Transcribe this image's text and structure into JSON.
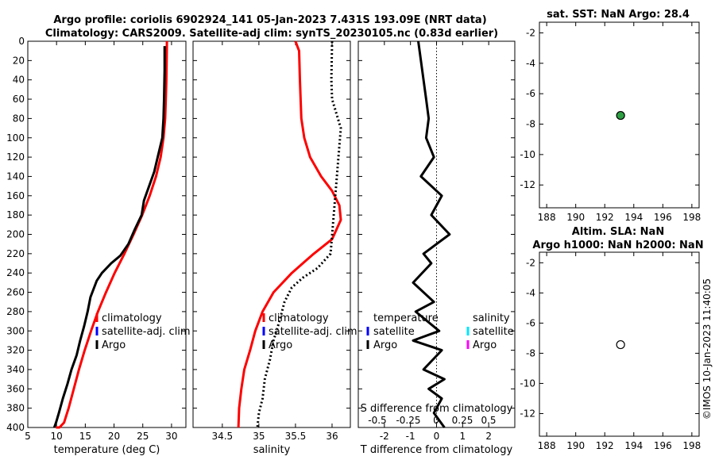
{
  "header": {
    "title_line1": "Argo profile: coriolis 6902924_141 05-Jan-2023 7.431S 193.09E (NRT data)",
    "title_line2": "Climatology: CARS2009. Satellite-adj clim: synTS_20230105.nc (0.83d earlier)"
  },
  "watermark": "©IMOS 10-Jan-2023 11:40:05",
  "colors": {
    "climatology": "#ff0000",
    "satellite_adj": "#0000ff",
    "argo": "#000000",
    "salinity_satellite": "#00e5ff",
    "salinity_argo": "#ff00ff",
    "argo_marker": "#2ea043"
  },
  "legend": {
    "climatology": "climatology",
    "satellite_adj": "satellite-adj. clim",
    "argo": "Argo",
    "diff_temperature": "temperature",
    "diff_salinity": "salinity",
    "diff_satellite": "satellite",
    "diff_argo": "Argo"
  },
  "chart_data": [
    {
      "id": "temperature_profile",
      "type": "line",
      "xlabel": "temperature (deg C)",
      "ylabel": "",
      "xlim": [
        5,
        32.5
      ],
      "ylim": [
        400,
        0
      ],
      "xticks": [
        5,
        10,
        15,
        20,
        25,
        30
      ],
      "yticks": [
        0,
        20,
        40,
        60,
        80,
        100,
        120,
        140,
        160,
        180,
        200,
        220,
        240,
        260,
        280,
        300,
        320,
        340,
        360,
        380,
        400
      ],
      "series": [
        {
          "name": "climatology",
          "x": [
            29.2,
            29.1,
            29.0,
            28.9,
            28.6,
            28.1,
            27.3,
            26.2,
            24.9,
            23.4,
            21.8,
            20.1,
            18.6,
            17.2,
            16.0,
            14.9,
            13.9,
            13.0,
            12.1,
            11.3,
            10.5,
            9.9
          ],
          "depth": [
            0,
            40,
            60,
            80,
            100,
            120,
            140,
            160,
            180,
            200,
            220,
            240,
            260,
            280,
            300,
            320,
            340,
            360,
            380,
            395,
            400,
            400
          ]
        },
        {
          "name": "Argo",
          "x": [
            28.8,
            28.8,
            28.7,
            28.6,
            28.4,
            27.6,
            27.0,
            26.1,
            25.2,
            24.8,
            23.6,
            22.5,
            21.1,
            19.5,
            17.9,
            17.0,
            15.9,
            15.4,
            14.8,
            14.1,
            13.5,
            12.6,
            11.9,
            11.1,
            10.4,
            9.9,
            9.6
          ],
          "depth": [
            5,
            30,
            60,
            80,
            100,
            120,
            135,
            150,
            165,
            180,
            195,
            210,
            222,
            230,
            240,
            248,
            265,
            280,
            295,
            310,
            325,
            340,
            355,
            370,
            385,
            395,
            400
          ]
        }
      ]
    },
    {
      "id": "salinity_profile",
      "type": "line",
      "xlabel": "salinity",
      "xlim": [
        34.1,
        36.25
      ],
      "ylim": [
        400,
        0
      ],
      "xticks": [
        34.5,
        35,
        35.5,
        36
      ],
      "series": [
        {
          "name": "climatology",
          "x": [
            35.5,
            35.55,
            35.56,
            35.58,
            35.62,
            35.7,
            35.85,
            36.0,
            36.1,
            36.12,
            36.0,
            35.75,
            35.45,
            35.2,
            35.05,
            34.95,
            34.88,
            34.8,
            34.76,
            34.73,
            34.72
          ],
          "depth": [
            0,
            10,
            40,
            80,
            100,
            120,
            140,
            155,
            170,
            185,
            205,
            220,
            240,
            260,
            280,
            300,
            320,
            340,
            360,
            380,
            400
          ]
        },
        {
          "name": "Argo",
          "x": [
            36.0,
            35.99,
            36.0,
            36.08,
            36.12,
            35.98,
            35.8,
            35.6,
            35.45,
            35.35,
            35.28,
            35.2,
            35.15,
            35.08,
            35.05,
            35.0,
            34.98
          ],
          "depth": [
            0,
            40,
            60,
            80,
            90,
            220,
            235,
            245,
            255,
            270,
            290,
            310,
            330,
            350,
            370,
            385,
            400
          ]
        }
      ]
    },
    {
      "id": "difference_profile",
      "type": "line",
      "xlabel": "T difference from climatology",
      "xlabel_top": "S difference from climatology",
      "xlim": [
        -3,
        3
      ],
      "ylim": [
        400,
        0
      ],
      "xticks": [
        -2,
        -1,
        0,
        1,
        2
      ],
      "top_xticks": [
        "-0.5",
        "-0.25",
        "0",
        "0.25",
        "0.5"
      ],
      "series": [
        {
          "name": "Argo",
          "x": [
            -0.7,
            -0.6,
            -0.5,
            -0.4,
            -0.3,
            -0.4,
            -0.1,
            -0.6,
            0.2,
            -0.2,
            0.5,
            0.0,
            -0.5,
            -0.2,
            -0.9,
            -0.1,
            -0.8,
            0.1,
            -0.9,
            0.2,
            -0.5,
            0.3,
            -0.3,
            0.2,
            -0.1,
            0.3
          ],
          "depth": [
            0,
            20,
            40,
            60,
            80,
            100,
            120,
            140,
            160,
            180,
            200,
            210,
            220,
            230,
            250,
            270,
            280,
            300,
            310,
            320,
            340,
            350,
            360,
            370,
            385,
            400
          ]
        }
      ]
    },
    {
      "id": "sst_map",
      "type": "scatter",
      "title": "sat. SST: NaN Argo: 28.4",
      "xlim": [
        187.5,
        198.5
      ],
      "ylim": [
        -13.5,
        -1.3
      ],
      "xticks": [
        188,
        190,
        192,
        194,
        196,
        198
      ],
      "yticks": [
        -2,
        -4,
        -6,
        -8,
        -10,
        -12
      ],
      "points": [
        {
          "x": 193.09,
          "y": -7.43
        }
      ]
    },
    {
      "id": "altimetry_map",
      "type": "scatter",
      "title_line1": "Altim. SLA: NaN",
      "title_line2": "Argo h1000: NaN h2000: NaN",
      "xlim": [
        187.5,
        198.5
      ],
      "ylim": [
        -13.5,
        -1.3
      ],
      "xticks": [
        188,
        190,
        192,
        194,
        196,
        198
      ],
      "yticks": [
        -2,
        -4,
        -6,
        -8,
        -10,
        -12
      ],
      "points": [
        {
          "x": 193.09,
          "y": -7.43
        }
      ]
    }
  ]
}
